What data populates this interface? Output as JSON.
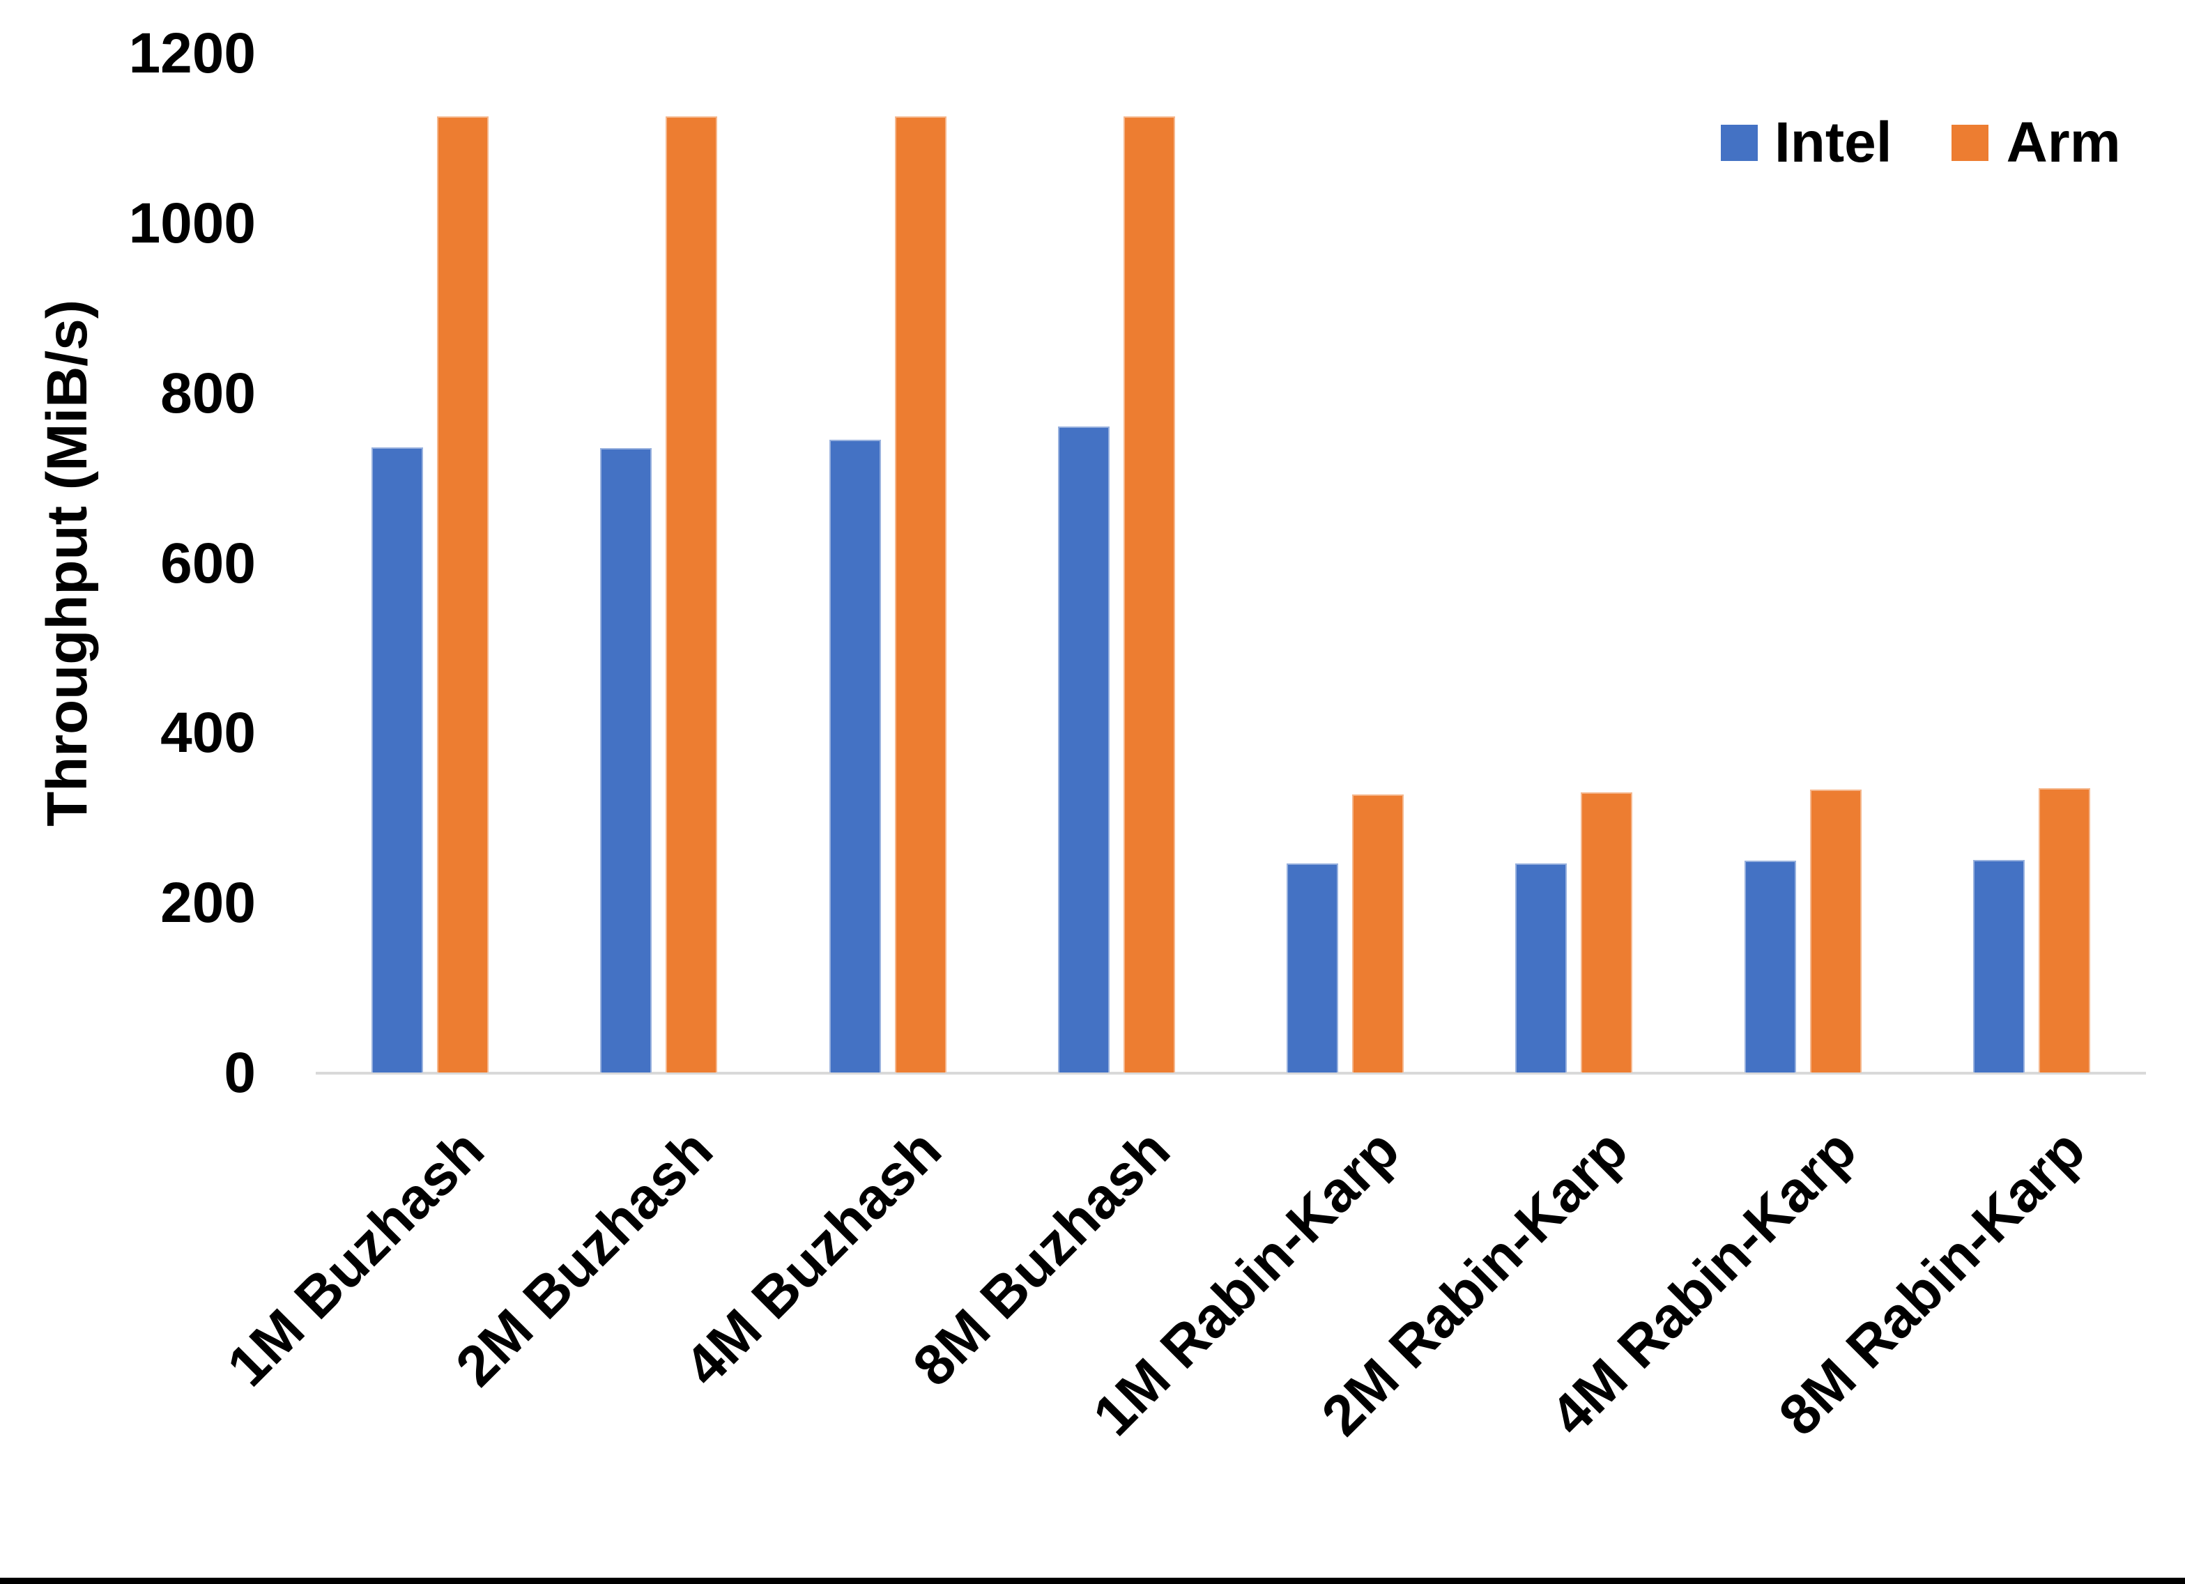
{
  "chart_data": {
    "type": "bar",
    "title": "",
    "xlabel": "",
    "ylabel": "Throughput (MiB/s)",
    "categories": [
      "1M Buzhash",
      "2M Buzhash",
      "4M Buzhash",
      "8M Buzhash",
      "1M Rabin-Karp",
      "2M Rabin-Karp",
      "4M Rabin-Karp",
      "8M Rabin-Karp"
    ],
    "series": [
      {
        "name": "Intel",
        "color": "#4472C4",
        "values": [
          736,
          735,
          745,
          760,
          246,
          246,
          249,
          250
        ]
      },
      {
        "name": "Arm",
        "color": "#ED7D31",
        "values": [
          1125,
          1125,
          1125,
          1125,
          327,
          330,
          333,
          335
        ]
      }
    ],
    "y_ticks": [
      0,
      200,
      400,
      600,
      800,
      1000,
      1200
    ],
    "ylim": [
      0,
      1200
    ],
    "grid": false,
    "legend_position": "top-right",
    "axis_line_color": "#D9D9D9",
    "text_color": "#000000",
    "x_label_rotation_deg": -45
  }
}
